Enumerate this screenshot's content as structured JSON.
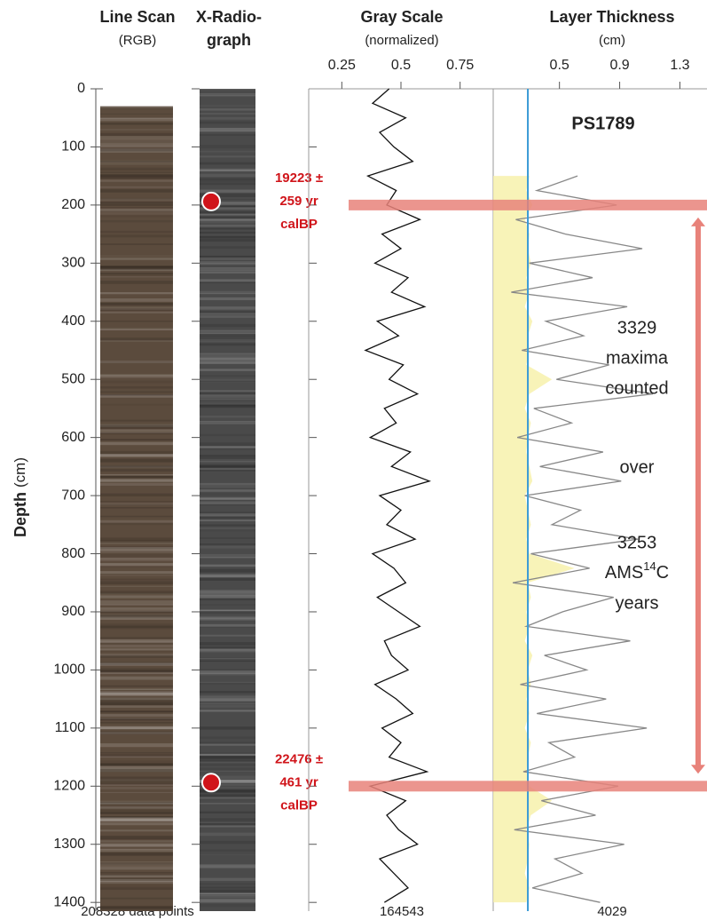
{
  "chart_data": [
    {
      "type": "image-strip",
      "title": "Line Scan",
      "subtitle": "(RGB)",
      "footer": "208328 data points",
      "y_label": "Depth",
      "y_label_unit": "(cm)",
      "ylim": [
        0,
        1415
      ],
      "yticks": [
        0,
        100,
        200,
        300,
        400,
        500,
        600,
        700,
        800,
        900,
        1000,
        1100,
        1200,
        1300,
        1400
      ],
      "extent": [
        30,
        1415
      ],
      "color": "#5b4b3d"
    },
    {
      "type": "image-strip",
      "title": "X-Radio-",
      "subtitle": "graph",
      "extent": [
        0,
        1415
      ],
      "color": "#4a4a4a",
      "dates": [
        {
          "depth": 200,
          "label": [
            "19223 ±",
            "259 yr",
            "calBP"
          ]
        },
        {
          "depth": 1200,
          "label": [
            "22476 ±",
            "461 yr",
            "calBP"
          ]
        }
      ],
      "date_color": "#d0141a",
      "bar_color": "#e8827a"
    },
    {
      "type": "line",
      "title": "Gray Scale",
      "subtitle": "(normalized)",
      "footer": "164543",
      "xlim": [
        0.11,
        0.89
      ],
      "xticks": [
        0.25,
        0.5,
        0.75
      ],
      "color": "#111111",
      "depth": [
        0,
        25,
        50,
        75,
        100,
        125,
        150,
        175,
        200,
        225,
        250,
        275,
        300,
        325,
        350,
        375,
        400,
        425,
        450,
        475,
        500,
        525,
        550,
        575,
        600,
        625,
        650,
        675,
        700,
        725,
        750,
        775,
        800,
        825,
        850,
        875,
        900,
        925,
        950,
        975,
        1000,
        1025,
        1050,
        1075,
        1100,
        1125,
        1150,
        1175,
        1200,
        1225,
        1250,
        1275,
        1300,
        1325,
        1350,
        1375,
        1400
      ],
      "values": [
        0.45,
        0.38,
        0.52,
        0.41,
        0.47,
        0.55,
        0.36,
        0.48,
        0.44,
        0.58,
        0.42,
        0.5,
        0.39,
        0.53,
        0.46,
        0.6,
        0.4,
        0.49,
        0.35,
        0.51,
        0.45,
        0.57,
        0.43,
        0.48,
        0.37,
        0.54,
        0.46,
        0.62,
        0.41,
        0.5,
        0.44,
        0.56,
        0.38,
        0.47,
        0.52,
        0.4,
        0.49,
        0.58,
        0.43,
        0.46,
        0.53,
        0.39,
        0.48,
        0.55,
        0.42,
        0.5,
        0.45,
        0.61,
        0.37,
        0.52,
        0.44,
        0.49,
        0.57,
        0.41,
        0.47,
        0.53,
        0.43
      ]
    },
    {
      "type": "line",
      "title": "Layer Thickness",
      "subtitle": "(cm)",
      "footer": "4029",
      "xlim": [
        0.06,
        1.48
      ],
      "xticks": [
        0.5,
        0.9,
        1.3
      ],
      "color": "#888888",
      "fill_color": "#f6f0a6",
      "ref": 0.29,
      "ref_color": "#3b9bd6",
      "core": "PS1789",
      "note": [
        "3329",
        "maxima",
        "counted",
        "over",
        "3253"
      ],
      "ams": "AMS",
      "ams_sup": "14",
      "ams_c": "C",
      "years": "years",
      "depth": [
        150,
        175,
        200,
        225,
        250,
        275,
        300,
        325,
        350,
        375,
        400,
        425,
        450,
        475,
        500,
        525,
        550,
        575,
        600,
        625,
        650,
        675,
        700,
        725,
        750,
        775,
        800,
        825,
        850,
        875,
        900,
        925,
        950,
        975,
        1000,
        1025,
        1050,
        1075,
        1100,
        1125,
        1150,
        1175,
        1200,
        1225,
        1250,
        1275,
        1300,
        1325,
        1350,
        1375,
        1400
      ],
      "values": [
        0.62,
        0.35,
        0.88,
        0.21,
        0.54,
        1.05,
        0.3,
        0.72,
        0.18,
        0.95,
        0.41,
        0.66,
        0.25,
        0.83,
        0.48,
        1.12,
        0.33,
        0.58,
        0.22,
        0.79,
        0.37,
        0.91,
        0.27,
        0.64,
        0.45,
        1.02,
        0.31,
        0.7,
        0.19,
        0.86,
        0.52,
        0.28,
        0.97,
        0.4,
        0.68,
        0.24,
        0.81,
        0.35,
        1.08,
        0.43,
        0.6,
        0.26,
        0.89,
        0.38,
        0.74,
        0.2,
        0.93,
        0.47,
        0.65,
        0.32,
        0.77
      ],
      "fill": [
        0.3,
        0.28,
        0.32,
        0.27,
        0.3,
        0.29,
        0.31,
        0.28,
        0.3,
        0.27,
        0.32,
        0.29,
        0.3,
        0.28,
        0.45,
        0.3,
        0.27,
        0.31,
        0.29,
        0.28,
        0.3,
        0.32,
        0.27,
        0.29,
        0.31,
        0.28,
        0.3,
        0.6,
        0.29,
        0.31,
        0.28,
        0.3,
        0.27,
        0.32,
        0.29,
        0.31,
        0.28,
        0.3,
        0.27,
        0.31,
        0.29,
        0.28,
        0.3,
        0.45,
        0.31,
        0.28,
        0.3,
        0.29,
        0.27,
        0.3,
        0.28
      ]
    }
  ]
}
